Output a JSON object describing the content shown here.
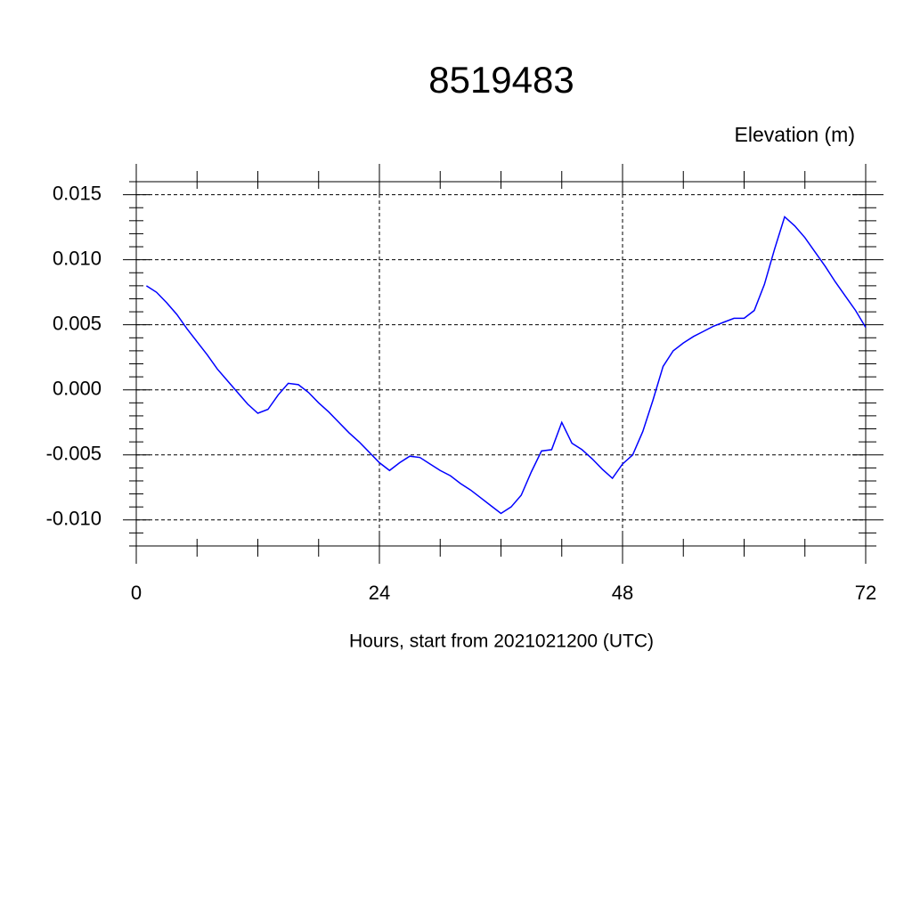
{
  "chart_data": {
    "type": "line",
    "title": "8519483",
    "y_label": "Elevation (m)",
    "x_label": "Hours, start from 2021021200 (UTC)",
    "x": [
      1,
      2,
      3,
      4,
      5,
      6,
      7,
      8,
      9,
      10,
      11,
      12,
      13,
      14,
      15,
      16,
      17,
      18,
      19,
      20,
      21,
      22,
      23,
      24,
      25,
      26,
      27,
      28,
      29,
      30,
      31,
      32,
      33,
      34,
      35,
      36,
      37,
      38,
      39,
      40,
      41,
      42,
      43,
      44,
      45,
      46,
      47,
      48,
      49,
      50,
      51,
      52,
      53,
      54,
      55,
      56,
      57,
      58,
      59,
      60,
      61,
      62,
      63,
      64,
      65,
      66,
      67,
      68,
      69,
      70,
      71,
      72
    ],
    "values": [
      0.008,
      0.0075,
      0.0067,
      0.0058,
      0.0047,
      0.0037,
      0.0027,
      0.0016,
      0.0007,
      -0.0002,
      -0.0011,
      -0.0018,
      -0.0015,
      -0.0004,
      0.0005,
      0.0004,
      -0.0002,
      -0.001,
      -0.0017,
      -0.0025,
      -0.0033,
      -0.004,
      -0.0048,
      -0.0056,
      -0.0062,
      -0.0056,
      -0.0051,
      -0.0052,
      -0.0057,
      -0.0062,
      -0.0066,
      -0.0072,
      -0.0077,
      -0.0083,
      -0.0089,
      -0.0095,
      -0.009,
      -0.0081,
      -0.0063,
      -0.0047,
      -0.0046,
      -0.0025,
      -0.0041,
      -0.0046,
      -0.0053,
      -0.0061,
      -0.0068,
      -0.0057,
      -0.005,
      -0.0032,
      -0.0008,
      0.0018,
      0.003,
      0.0036,
      0.0041,
      0.0045,
      0.0049,
      0.0052,
      0.0055,
      0.0055,
      0.0061,
      0.0081,
      0.0108,
      0.0133,
      0.0126,
      0.0117,
      0.0106,
      0.0095,
      0.0083,
      0.0072,
      0.0061,
      0.0048
    ],
    "color": "#0000ff",
    "xlim": [
      0,
      72
    ],
    "xticks": [
      0,
      24,
      48,
      72
    ],
    "xminorticks": [
      6,
      12,
      18,
      30,
      36,
      42,
      54,
      60,
      66
    ],
    "ylim": [
      -0.012,
      0.016
    ],
    "yticks": [
      {
        "value": -0.01,
        "label": "-0.010"
      },
      {
        "value": -0.005,
        "label": "-0.005"
      },
      {
        "value": 0,
        "label": "0.000"
      },
      {
        "value": 0.005,
        "label": "0.005"
      },
      {
        "value": 0.01,
        "label": "0.010"
      },
      {
        "value": 0.015,
        "label": "0.015"
      }
    ],
    "yminorticks": [
      -0.012,
      -0.011,
      -0.009,
      -0.008,
      -0.007,
      -0.006,
      -0.004,
      -0.003,
      -0.002,
      -0.001,
      0.001,
      0.002,
      0.003,
      0.004,
      0.006,
      0.007,
      0.008,
      0.009,
      0.011,
      0.012,
      0.013,
      0.014,
      0.016
    ],
    "grid": true
  }
}
